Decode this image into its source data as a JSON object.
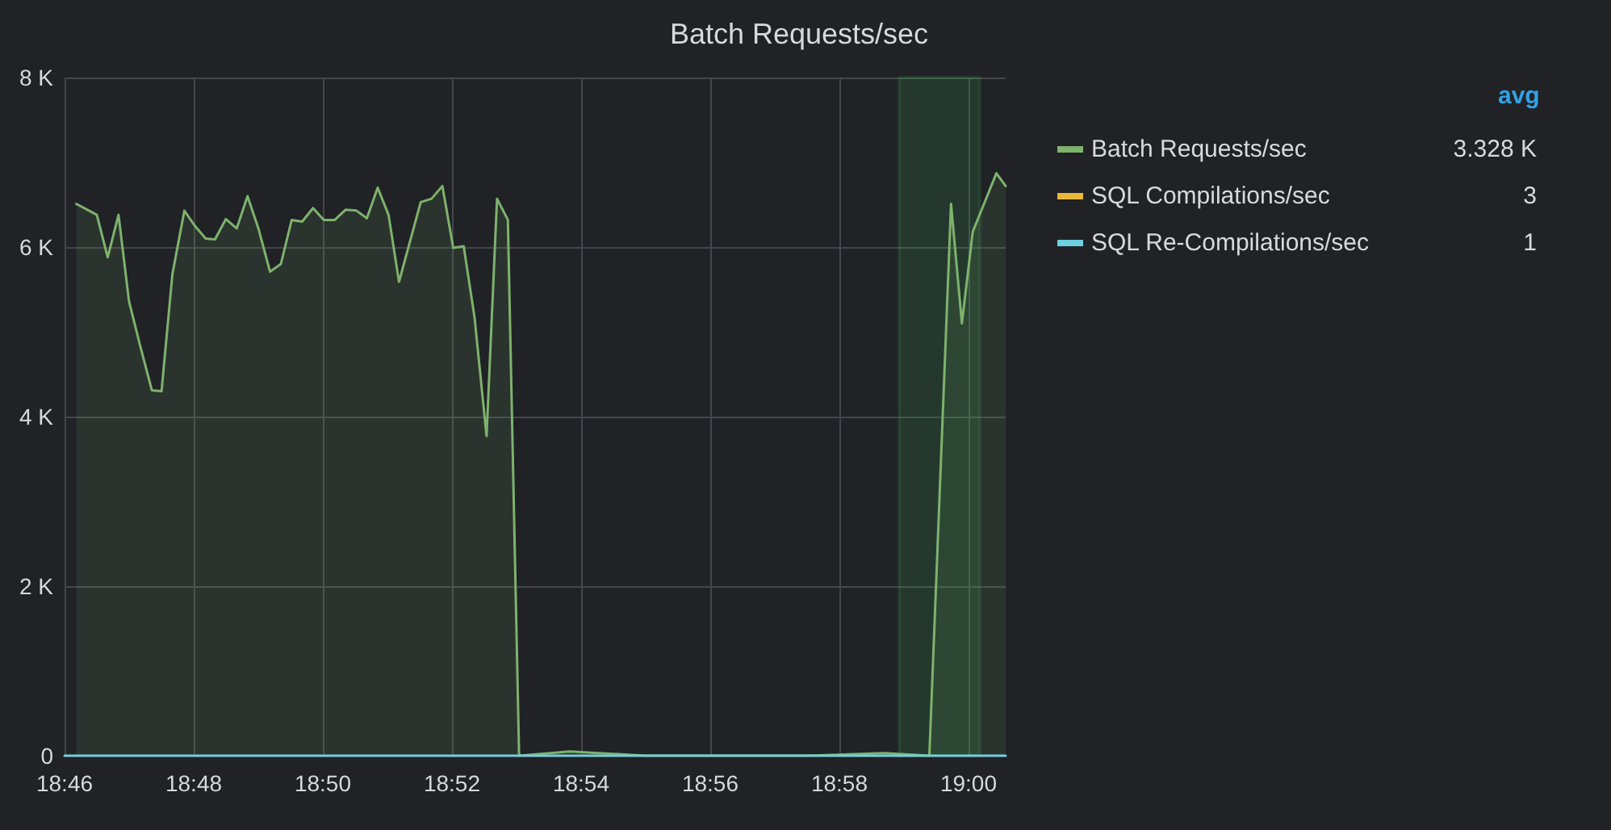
{
  "chart_data": {
    "type": "line",
    "title": "Batch Requests/sec",
    "legend_title": "avg",
    "legend": "right",
    "grid": true,
    "marker": "none",
    "line_style": "solid",
    "annotations": [
      "3.328 K",
      "3",
      "1"
    ],
    "bands": [
      {
        "axis": "x",
        "from": 18.9821,
        "to": 19.0029,
        "color": "#3cb95a"
      }
    ],
    "xlim": [
      18.766667,
      19.0096
    ],
    "xticks": [
      {
        "value": 18.766667,
        "label": "18:46"
      },
      {
        "value": 18.8,
        "label": "18:48"
      },
      {
        "value": 18.833333,
        "label": "18:50"
      },
      {
        "value": 18.866667,
        "label": "18:52"
      },
      {
        "value": 18.9,
        "label": "18:54"
      },
      {
        "value": 18.933333,
        "label": "18:56"
      },
      {
        "value": 18.966667,
        "label": "18:58"
      },
      {
        "value": 19,
        "label": "19:00"
      }
    ],
    "ylim": [
      0,
      8000
    ],
    "yticks": [
      {
        "value": 0,
        "label": "0"
      },
      {
        "value": 2000,
        "label": "2 K"
      },
      {
        "value": 4000,
        "label": "4 K"
      },
      {
        "value": 6000,
        "label": "6 K"
      },
      {
        "value": 8000,
        "label": "8 K"
      }
    ],
    "series": [
      {
        "name": "Batch Requests/sec",
        "type": "area",
        "color": "#7eb26d",
        "x": [
          18.7697,
          18.775,
          18.7778,
          18.7806,
          18.7833,
          18.7861,
          18.7892,
          18.7917,
          18.7945,
          18.7976,
          18.8003,
          18.8031,
          18.8055,
          18.8083,
          18.8111,
          18.8139,
          18.8167,
          18.8197,
          18.8225,
          18.8253,
          18.828,
          18.8308,
          18.8336,
          18.8364,
          18.8392,
          18.842,
          18.8447,
          18.8475,
          18.8503,
          18.853,
          18.8558,
          18.8586,
          18.8614,
          18.8642,
          18.867,
          18.8697,
          18.8725,
          18.8756,
          18.8783,
          18.8811,
          18.884,
          18.8971,
          18.9167,
          18.9583,
          18.9783,
          18.9899,
          18.9955,
          18.9983,
          19.0011,
          19.0072,
          19.0096
        ],
        "values": [
          6510,
          6380,
          5880,
          6380,
          5360,
          4850,
          4310,
          4300,
          5680,
          6430,
          6250,
          6100,
          6090,
          6330,
          6220,
          6600,
          6220,
          5710,
          5800,
          6320,
          6300,
          6460,
          6320,
          6320,
          6440,
          6430,
          6340,
          6700,
          6380,
          5590,
          6060,
          6530,
          6570,
          6720,
          5990,
          6010,
          5170,
          3770,
          6570,
          6320,
          0,
          50,
          0,
          0,
          30,
          0,
          6510,
          5100,
          6180,
          6870,
          6720
        ]
      },
      {
        "name": "SQL Compilations/sec",
        "type": "line",
        "color": "#eab839"
      },
      {
        "name": "SQL Re-Compilations/sec",
        "type": "line",
        "color": "#6ed0e0",
        "x": [
          18.766667,
          19.0096
        ],
        "values": [
          0,
          0
        ]
      }
    ]
  }
}
